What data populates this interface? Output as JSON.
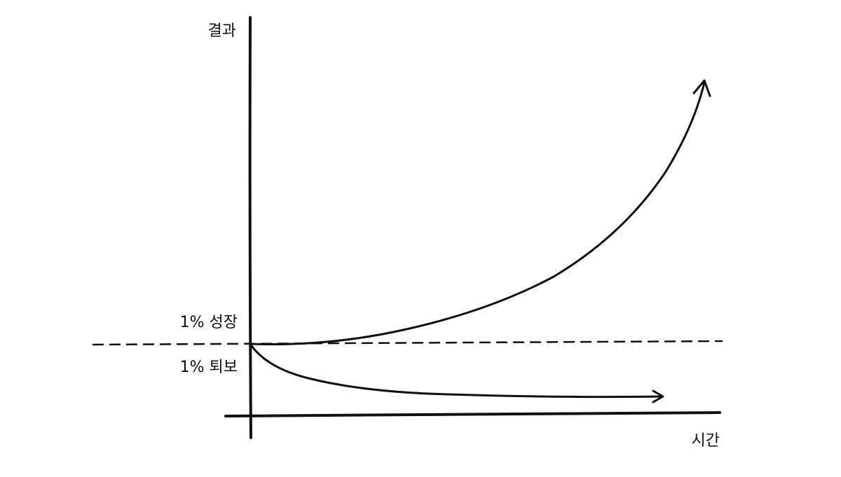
{
  "axes": {
    "y_label": "결과",
    "x_label": "시간"
  },
  "curves": {
    "growth": "1% 성장",
    "decline": "1% 퇴보"
  }
}
